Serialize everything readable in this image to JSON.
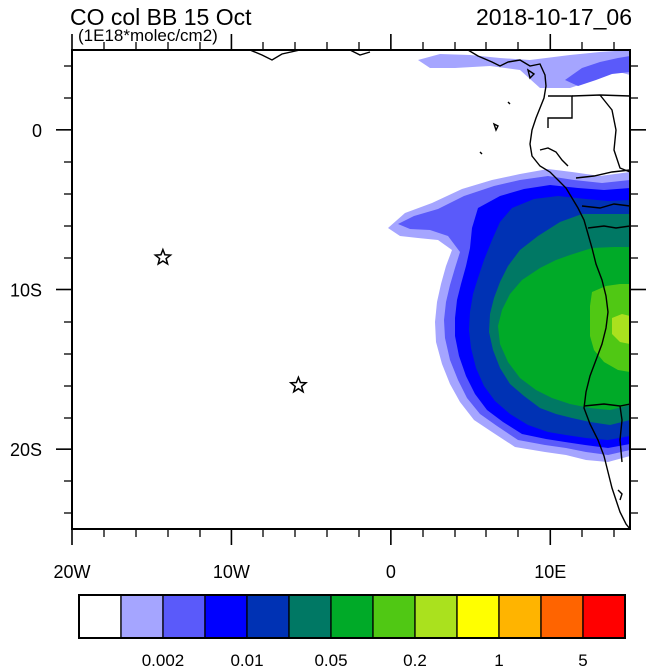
{
  "header": {
    "title": "CO col BB 15 Oct",
    "units": "(1E18*molec/cm2)",
    "datetime": "2018-10-17_06"
  },
  "map": {
    "lon_range": [
      -20,
      15
    ],
    "lat_range": [
      -25,
      5
    ],
    "x_ticks": [
      {
        "value": -20,
        "label": "20W"
      },
      {
        "value": -10,
        "label": "10W"
      },
      {
        "value": 0,
        "label": "0"
      },
      {
        "value": 10,
        "label": "10E"
      }
    ],
    "y_ticks": [
      {
        "value": 0,
        "label": "0"
      },
      {
        "value": -10,
        "label": "10S"
      },
      {
        "value": -20,
        "label": "20S"
      }
    ],
    "markers": [
      {
        "name": "station-star",
        "lon": -14.3,
        "lat": -8.0
      },
      {
        "name": "station-star",
        "lon": -5.8,
        "lat": -16.0
      }
    ]
  },
  "colorbar": {
    "colors": [
      "#ffffff",
      "#a5a5ff",
      "#5a5afa",
      "#0000ff",
      "#0032b4",
      "#007864",
      "#00aa28",
      "#50c814",
      "#aae11e",
      "#ffff00",
      "#ffb400",
      "#ff6400",
      "#ff0000"
    ],
    "labels": [
      {
        "boundary": 2,
        "text": "0.002"
      },
      {
        "boundary": 4,
        "text": "0.01"
      },
      {
        "boundary": 6,
        "text": "0.05"
      },
      {
        "boundary": 8,
        "text": "0.2"
      },
      {
        "boundary": 10,
        "text": "1"
      },
      {
        "boundary": 12,
        "text": "5"
      }
    ]
  }
}
